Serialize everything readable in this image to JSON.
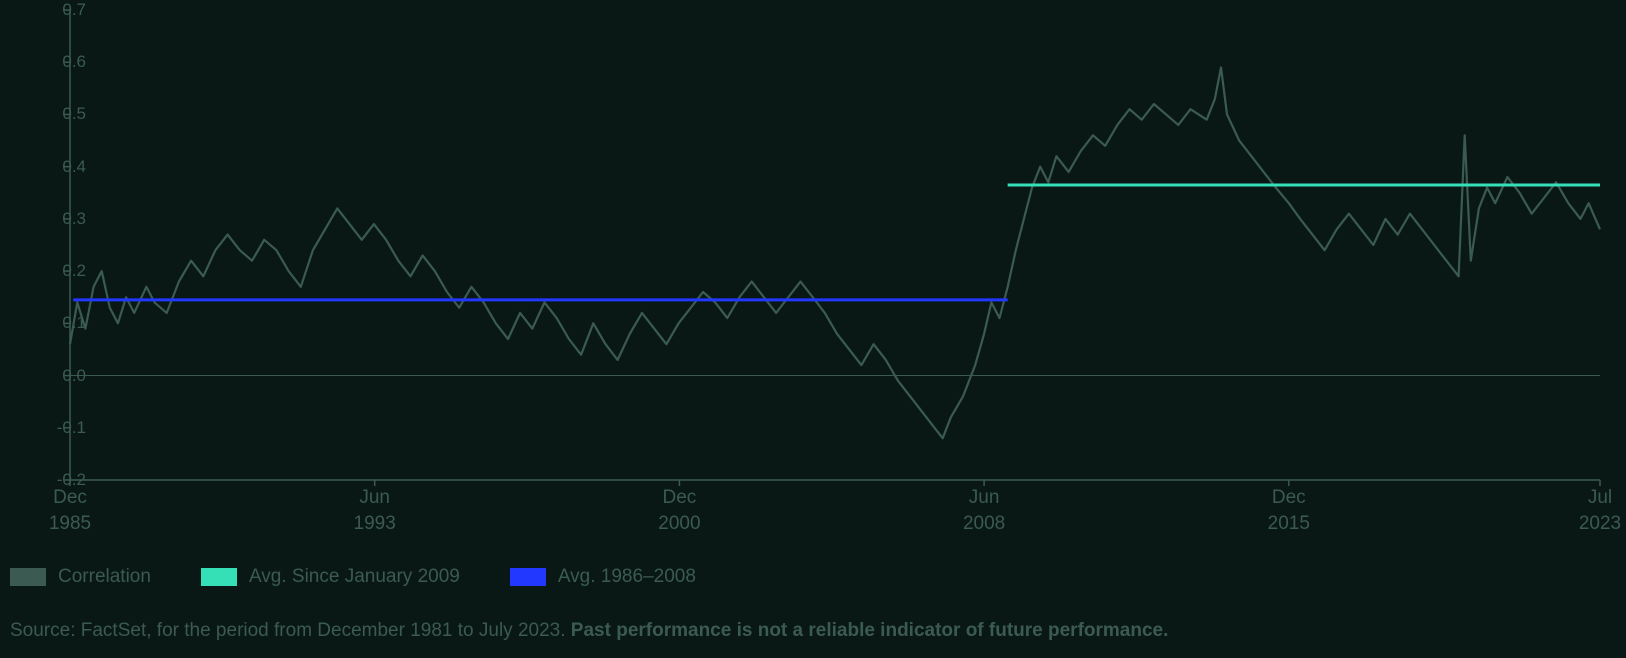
{
  "chart": {
    "type": "line",
    "background_color": "#0a1815",
    "text_color": "#3a5a52",
    "axis_color": "#3a5a52",
    "ylim": [
      -0.2,
      0.7
    ],
    "yticks": [
      -0.2,
      -0.1,
      0.0,
      0.1,
      0.2,
      0.3,
      0.4,
      0.5,
      0.6,
      0.7
    ],
    "ytick_labels": [
      "-0.2",
      "-0.1",
      "0.0",
      "0.1",
      "0.2",
      "0.3",
      "0.4",
      "0.5",
      "0.6",
      "0.7"
    ],
    "xlim": [
      1985.92,
      2023.58
    ],
    "xticks": [
      1985.92,
      1993.42,
      2000.92,
      2008.42,
      2015.92,
      2023.58
    ],
    "xtick_labels": [
      "Dec\n1985",
      "Jun\n1993",
      "Dec\n2000",
      "Jun\n2008",
      "Dec\n2015",
      "Jul\n2023"
    ],
    "zero_line": true,
    "series": {
      "correlation": {
        "color": "#3a5a52",
        "line_width": 2.2,
        "data": [
          [
            1985.92,
            0.06
          ],
          [
            1986.1,
            0.14
          ],
          [
            1986.3,
            0.09
          ],
          [
            1986.5,
            0.17
          ],
          [
            1986.7,
            0.2
          ],
          [
            1986.9,
            0.13
          ],
          [
            1987.1,
            0.1
          ],
          [
            1987.3,
            0.15
          ],
          [
            1987.5,
            0.12
          ],
          [
            1987.8,
            0.17
          ],
          [
            1988.0,
            0.14
          ],
          [
            1988.3,
            0.12
          ],
          [
            1988.6,
            0.18
          ],
          [
            1988.9,
            0.22
          ],
          [
            1989.2,
            0.19
          ],
          [
            1989.5,
            0.24
          ],
          [
            1989.8,
            0.27
          ],
          [
            1990.1,
            0.24
          ],
          [
            1990.4,
            0.22
          ],
          [
            1990.7,
            0.26
          ],
          [
            1991.0,
            0.24
          ],
          [
            1991.3,
            0.2
          ],
          [
            1991.6,
            0.17
          ],
          [
            1991.9,
            0.24
          ],
          [
            1992.2,
            0.28
          ],
          [
            1992.5,
            0.32
          ],
          [
            1992.8,
            0.29
          ],
          [
            1993.1,
            0.26
          ],
          [
            1993.4,
            0.29
          ],
          [
            1993.7,
            0.26
          ],
          [
            1994.0,
            0.22
          ],
          [
            1994.3,
            0.19
          ],
          [
            1994.6,
            0.23
          ],
          [
            1994.9,
            0.2
          ],
          [
            1995.2,
            0.16
          ],
          [
            1995.5,
            0.13
          ],
          [
            1995.8,
            0.17
          ],
          [
            1996.1,
            0.14
          ],
          [
            1996.4,
            0.1
          ],
          [
            1996.7,
            0.07
          ],
          [
            1997.0,
            0.12
          ],
          [
            1997.3,
            0.09
          ],
          [
            1997.6,
            0.14
          ],
          [
            1997.9,
            0.11
          ],
          [
            1998.2,
            0.07
          ],
          [
            1998.5,
            0.04
          ],
          [
            1998.8,
            0.1
          ],
          [
            1999.1,
            0.06
          ],
          [
            1999.4,
            0.03
          ],
          [
            1999.7,
            0.08
          ],
          [
            2000.0,
            0.12
          ],
          [
            2000.3,
            0.09
          ],
          [
            2000.6,
            0.06
          ],
          [
            2000.9,
            0.1
          ],
          [
            2001.2,
            0.13
          ],
          [
            2001.5,
            0.16
          ],
          [
            2001.8,
            0.14
          ],
          [
            2002.1,
            0.11
          ],
          [
            2002.4,
            0.15
          ],
          [
            2002.7,
            0.18
          ],
          [
            2003.0,
            0.15
          ],
          [
            2003.3,
            0.12
          ],
          [
            2003.6,
            0.15
          ],
          [
            2003.9,
            0.18
          ],
          [
            2004.2,
            0.15
          ],
          [
            2004.5,
            0.12
          ],
          [
            2004.8,
            0.08
          ],
          [
            2005.1,
            0.05
          ],
          [
            2005.4,
            0.02
          ],
          [
            2005.7,
            0.06
          ],
          [
            2006.0,
            0.03
          ],
          [
            2006.3,
            -0.01
          ],
          [
            2006.6,
            -0.04
          ],
          [
            2006.9,
            -0.07
          ],
          [
            2007.2,
            -0.1
          ],
          [
            2007.4,
            -0.12
          ],
          [
            2007.6,
            -0.08
          ],
          [
            2007.9,
            -0.04
          ],
          [
            2008.2,
            0.02
          ],
          [
            2008.42,
            0.08
          ],
          [
            2008.6,
            0.14
          ],
          [
            2008.8,
            0.11
          ],
          [
            2009.0,
            0.17
          ],
          [
            2009.2,
            0.24
          ],
          [
            2009.4,
            0.3
          ],
          [
            2009.6,
            0.36
          ],
          [
            2009.8,
            0.4
          ],
          [
            2010.0,
            0.37
          ],
          [
            2010.2,
            0.42
          ],
          [
            2010.5,
            0.39
          ],
          [
            2010.8,
            0.43
          ],
          [
            2011.1,
            0.46
          ],
          [
            2011.4,
            0.44
          ],
          [
            2011.7,
            0.48
          ],
          [
            2012.0,
            0.51
          ],
          [
            2012.3,
            0.49
          ],
          [
            2012.6,
            0.52
          ],
          [
            2012.9,
            0.5
          ],
          [
            2013.2,
            0.48
          ],
          [
            2013.5,
            0.51
          ],
          [
            2013.9,
            0.49
          ],
          [
            2014.1,
            0.53
          ],
          [
            2014.25,
            0.59
          ],
          [
            2014.4,
            0.5
          ],
          [
            2014.7,
            0.45
          ],
          [
            2015.0,
            0.42
          ],
          [
            2015.3,
            0.39
          ],
          [
            2015.6,
            0.36
          ],
          [
            2015.92,
            0.33
          ],
          [
            2016.2,
            0.3
          ],
          [
            2016.5,
            0.27
          ],
          [
            2016.8,
            0.24
          ],
          [
            2017.1,
            0.28
          ],
          [
            2017.4,
            0.31
          ],
          [
            2017.7,
            0.28
          ],
          [
            2018.0,
            0.25
          ],
          [
            2018.3,
            0.3
          ],
          [
            2018.6,
            0.27
          ],
          [
            2018.9,
            0.31
          ],
          [
            2019.2,
            0.28
          ],
          [
            2019.5,
            0.25
          ],
          [
            2019.8,
            0.22
          ],
          [
            2020.1,
            0.19
          ],
          [
            2020.25,
            0.46
          ],
          [
            2020.4,
            0.22
          ],
          [
            2020.6,
            0.32
          ],
          [
            2020.8,
            0.36
          ],
          [
            2021.0,
            0.33
          ],
          [
            2021.3,
            0.38
          ],
          [
            2021.6,
            0.35
          ],
          [
            2021.9,
            0.31
          ],
          [
            2022.2,
            0.34
          ],
          [
            2022.5,
            0.37
          ],
          [
            2022.8,
            0.33
          ],
          [
            2023.1,
            0.3
          ],
          [
            2023.3,
            0.33
          ],
          [
            2023.58,
            0.28
          ]
        ]
      },
      "avg_1986_2008": {
        "color": "#2238ff",
        "line_width": 3,
        "value": 0.145,
        "x_start": 1986.0,
        "x_end": 2009.0
      },
      "avg_since_2009": {
        "color": "#36e0b7",
        "line_width": 3,
        "value": 0.365,
        "x_start": 2009.0,
        "x_end": 2023.58
      }
    }
  },
  "legend": {
    "items": [
      {
        "key": "correlation",
        "label": "Correlation",
        "color": "#3a5a52"
      },
      {
        "key": "avg_since_2009",
        "label": "Avg. Since January 2009",
        "color": "#36e0b7"
      },
      {
        "key": "avg_1986_2008",
        "label": "Avg. 1986–2008",
        "color": "#2238ff"
      }
    ]
  },
  "source": {
    "prefix": "Source: FactSet, for the period from December 1981 to July 2023. ",
    "bold": "Past performance is not a reliable indicator of future performance."
  },
  "typography": {
    "axis_fontsize": 17,
    "xaxis_fontsize": 19,
    "legend_fontsize": 19,
    "source_fontsize": 19
  }
}
